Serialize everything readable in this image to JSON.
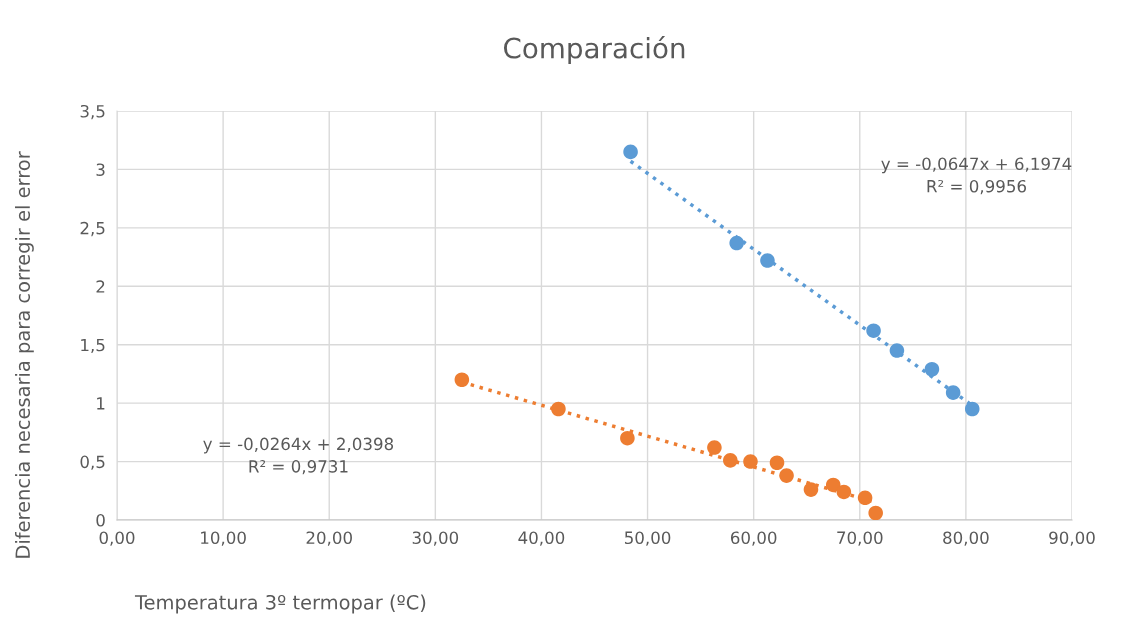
{
  "chart_data": {
    "type": "scatter",
    "title": "Comparación",
    "xlabel": "Temperatura 3º termopar (ºC)",
    "ylabel": "Diferencia necesaria para corregir el error",
    "series": [
      {
        "color": "#5b9bd5",
        "marker": "circle",
        "x": [
          48.4,
          58.4,
          61.3,
          71.3,
          73.5,
          76.8,
          78.8,
          80.6
        ],
        "values": [
          3.15,
          2.37,
          2.22,
          1.62,
          1.45,
          1.29,
          1.09,
          0.95
        ]
      },
      {
        "color": "#ed7d31",
        "marker": "circle",
        "x": [
          32.5,
          41.6,
          48.1,
          56.3,
          57.8,
          59.7,
          62.2,
          63.1,
          65.4,
          67.5,
          68.5,
          70.5,
          71.5
        ],
        "values": [
          1.2,
          0.95,
          0.7,
          0.62,
          0.51,
          0.5,
          0.49,
          0.38,
          0.26,
          0.3,
          0.24,
          0.19,
          0.06
        ]
      },
      {
        "type": "line",
        "color": "#5b9bd5",
        "line_style": "dotted",
        "marker": "none",
        "x": [
          48.4,
          80.6
        ],
        "values": [
          3.07,
          0.98
        ]
      },
      {
        "type": "line",
        "color": "#ed7d31",
        "line_style": "dotted",
        "marker": "none",
        "x": [
          32.5,
          71.5
        ],
        "values": [
          1.18,
          0.15
        ]
      }
    ],
    "annotations": [
      "y = -0,0647x + 6,1974\nR² = 0,9956",
      "y = -0,0264x + 2,0398\nR² = 0,9731"
    ],
    "xlim": [
      0,
      90
    ],
    "xticks": [
      {
        "value": 0,
        "label": "0,00"
      },
      {
        "value": 10,
        "label": "10,00"
      },
      {
        "value": 20,
        "label": "20,00"
      },
      {
        "value": 30,
        "label": "30,00"
      },
      {
        "value": 40,
        "label": "40,00"
      },
      {
        "value": 50,
        "label": "50,00"
      },
      {
        "value": 60,
        "label": "60,00"
      },
      {
        "value": 70,
        "label": "70,00"
      },
      {
        "value": 80,
        "label": "80,00"
      },
      {
        "value": 90,
        "label": "90,00"
      }
    ],
    "ylim": [
      0,
      3.5
    ],
    "yticks": [
      0,
      {
        "value": 0.5,
        "label": "0,5"
      },
      1,
      {
        "value": 1.5,
        "label": "1,5"
      },
      2,
      {
        "value": 2.5,
        "label": "2,5"
      },
      3,
      {
        "value": 3.5,
        "label": "3,5"
      }
    ],
    "grid": true,
    "legend": false
  }
}
